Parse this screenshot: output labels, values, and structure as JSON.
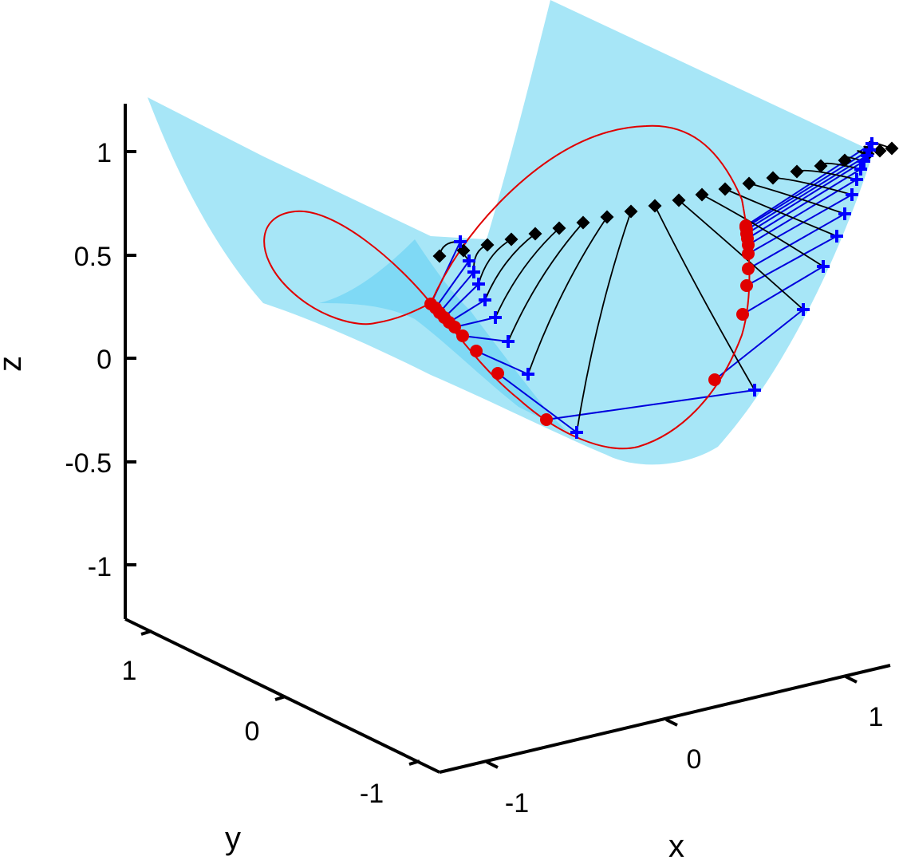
{
  "chart_data": {
    "type": "surface3d",
    "axes": {
      "x": {
        "label": "x",
        "ticks": [
          "-1",
          "0",
          "1"
        ],
        "range": [
          -1.3,
          1.3
        ]
      },
      "y": {
        "label": "y",
        "ticks": [
          "1",
          "0",
          "-1"
        ],
        "range": [
          -1.3,
          1.3
        ]
      },
      "z": {
        "label": "z",
        "ticks": [
          "1",
          "0.5",
          "0",
          "-0.5",
          "-1"
        ],
        "range": [
          -1.2,
          1.2
        ]
      }
    },
    "colors": {
      "surface": "#a7e6f7",
      "surface_dark": "#7fd9f5",
      "curve": "#e00000",
      "circles": "#e00000",
      "plus": "#0000ff",
      "diamonds": "#000000",
      "connector_red_plus": "#0000dd",
      "connector_curve": "#000000"
    },
    "series": [
      {
        "marker": "circle",
        "color": "#e00000",
        "count": 21
      },
      {
        "marker": "plus",
        "color": "#0000ff",
        "count": 21
      },
      {
        "marker": "diamond",
        "color": "#000000",
        "count": 21
      }
    ],
    "grid": false,
    "legend": "none"
  }
}
